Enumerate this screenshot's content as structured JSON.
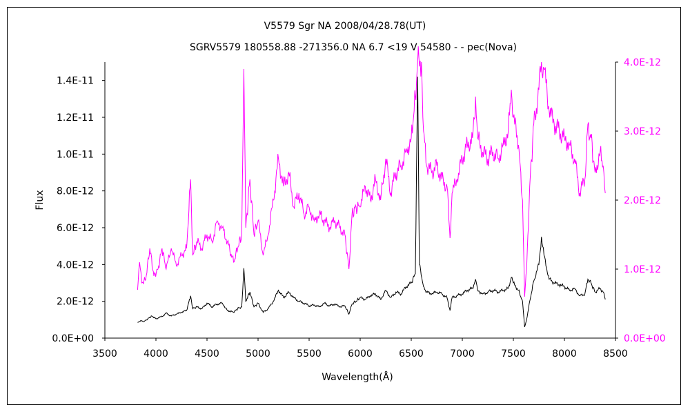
{
  "chart_data": {
    "type": "line",
    "title": "V5579 Sgr    NA    2008/04/28.78(UT)",
    "subtitle": "SGRV5579 180558.88 -271356.0 NA 6.7 <19  V 54580 - - pec(Nova)",
    "xlabel": "Wavelength(Å)",
    "ylabel": "Flux",
    "xlim": [
      3500,
      8500
    ],
    "ylim_left": [
      0,
      1.5e-11
    ],
    "ylim_right": [
      0,
      4e-12
    ],
    "x_ticks": [
      "3500",
      "4000",
      "4500",
      "5000",
      "5500",
      "6000",
      "6500",
      "7000",
      "7500",
      "8000",
      "8500"
    ],
    "y_ticks_left": [
      "0.0E+00",
      "2.0E-12",
      "4.0E-12",
      "6.0E-12",
      "8.0E-12",
      "1.0E-11",
      "1.2E-11",
      "1.4E-11"
    ],
    "y_ticks_right": [
      "0.0E+00",
      "1.0E-12",
      "2.0E-12",
      "3.0E-12",
      "4.0E-12"
    ],
    "grid": false,
    "legend": "none",
    "series": [
      {
        "axis": "left",
        "color": "#000000",
        "points": [
          [
            3820,
            8.5e-13
          ],
          [
            3850,
            9.5e-13
          ],
          [
            3880,
            8.8e-13
          ],
          [
            3920,
            1.05e-12
          ],
          [
            3960,
            1.2e-12
          ],
          [
            4000,
            1.05e-12
          ],
          [
            4050,
            1.15e-12
          ],
          [
            4100,
            1.35e-12
          ],
          [
            4150,
            1.2e-12
          ],
          [
            4200,
            1.3e-12
          ],
          [
            4250,
            1.4e-12
          ],
          [
            4300,
            1.5e-12
          ],
          [
            4340,
            2.3e-12
          ],
          [
            4360,
            1.6e-12
          ],
          [
            4400,
            1.7e-12
          ],
          [
            4450,
            1.6e-12
          ],
          [
            4500,
            1.9e-12
          ],
          [
            4550,
            1.7e-12
          ],
          [
            4600,
            1.85e-12
          ],
          [
            4650,
            1.9e-12
          ],
          [
            4700,
            1.5e-12
          ],
          [
            4760,
            1.4e-12
          ],
          [
            4800,
            1.6e-12
          ],
          [
            4840,
            1.7e-12
          ],
          [
            4861,
            3.8e-12
          ],
          [
            4880,
            2e-12
          ],
          [
            4920,
            2.5e-12
          ],
          [
            4960,
            1.7e-12
          ],
          [
            5000,
            1.9e-12
          ],
          [
            5050,
            1.4e-12
          ],
          [
            5100,
            1.6e-12
          ],
          [
            5150,
            2e-12
          ],
          [
            5200,
            2.6e-12
          ],
          [
            5250,
            2.2e-12
          ],
          [
            5300,
            2.5e-12
          ],
          [
            5350,
            2.2e-12
          ],
          [
            5400,
            2e-12
          ],
          [
            5450,
            1.9e-12
          ],
          [
            5500,
            1.75e-12
          ],
          [
            5550,
            1.8e-12
          ],
          [
            5600,
            1.7e-12
          ],
          [
            5650,
            1.9e-12
          ],
          [
            5700,
            1.75e-12
          ],
          [
            5750,
            1.85e-12
          ],
          [
            5800,
            1.7e-12
          ],
          [
            5850,
            1.75e-12
          ],
          [
            5890,
            1.3e-12
          ],
          [
            5920,
            1.85e-12
          ],
          [
            5960,
            2e-12
          ],
          [
            6000,
            2.2e-12
          ],
          [
            6050,
            2.1e-12
          ],
          [
            6100,
            2.3e-12
          ],
          [
            6150,
            2.4e-12
          ],
          [
            6200,
            2.1e-12
          ],
          [
            6250,
            2.6e-12
          ],
          [
            6300,
            2.2e-12
          ],
          [
            6350,
            2.5e-12
          ],
          [
            6400,
            2.4e-12
          ],
          [
            6450,
            2.8e-12
          ],
          [
            6500,
            3e-12
          ],
          [
            6540,
            3.5e-12
          ],
          [
            6563,
            1.42e-11
          ],
          [
            6580,
            4e-12
          ],
          [
            6620,
            2.8e-12
          ],
          [
            6650,
            2.5e-12
          ],
          [
            6700,
            2.4e-12
          ],
          [
            6750,
            2.5e-12
          ],
          [
            6800,
            2.4e-12
          ],
          [
            6850,
            2.2e-12
          ],
          [
            6880,
            1.5e-12
          ],
          [
            6900,
            2.2e-12
          ],
          [
            6950,
            2.3e-12
          ],
          [
            7000,
            2.4e-12
          ],
          [
            7050,
            2.6e-12
          ],
          [
            7100,
            2.7e-12
          ],
          [
            7130,
            3.2e-12
          ],
          [
            7150,
            2.6e-12
          ],
          [
            7200,
            2.4e-12
          ],
          [
            7250,
            2.5e-12
          ],
          [
            7300,
            2.6e-12
          ],
          [
            7350,
            2.5e-12
          ],
          [
            7400,
            2.6e-12
          ],
          [
            7450,
            2.7e-12
          ],
          [
            7480,
            3.3e-12
          ],
          [
            7500,
            3e-12
          ],
          [
            7550,
            2.6e-12
          ],
          [
            7590,
            2e-12
          ],
          [
            7610,
            6e-13
          ],
          [
            7630,
            1e-12
          ],
          [
            7660,
            2e-12
          ],
          [
            7700,
            3.1e-12
          ],
          [
            7750,
            4e-12
          ],
          [
            7775,
            5.5e-12
          ],
          [
            7800,
            4.5e-12
          ],
          [
            7850,
            3.2e-12
          ],
          [
            7900,
            3e-12
          ],
          [
            7950,
            2.9e-12
          ],
          [
            8000,
            2.8e-12
          ],
          [
            8050,
            2.6e-12
          ],
          [
            8100,
            2.7e-12
          ],
          [
            8150,
            2.3e-12
          ],
          [
            8200,
            2.4e-12
          ],
          [
            8230,
            3.2e-12
          ],
          [
            8260,
            3e-12
          ],
          [
            8300,
            2.5e-12
          ],
          [
            8350,
            2.7e-12
          ],
          [
            8380,
            2.5e-12
          ],
          [
            8400,
            2.1e-12
          ]
        ]
      },
      {
        "axis": "right",
        "color": "#ff00ff",
        "points": [
          [
            3820,
            7e-13
          ],
          [
            3840,
            1.1e-12
          ],
          [
            3860,
            8e-13
          ],
          [
            3900,
            8.5e-13
          ],
          [
            3940,
            1.3e-12
          ],
          [
            3980,
            9e-13
          ],
          [
            4020,
            1e-12
          ],
          [
            4060,
            1.3e-12
          ],
          [
            4100,
            1e-12
          ],
          [
            4150,
            1.3e-12
          ],
          [
            4200,
            1.05e-12
          ],
          [
            4250,
            1.2e-12
          ],
          [
            4300,
            1.3e-12
          ],
          [
            4340,
            2.3e-12
          ],
          [
            4360,
            1.2e-12
          ],
          [
            4400,
            1.4e-12
          ],
          [
            4450,
            1.3e-12
          ],
          [
            4500,
            1.5e-12
          ],
          [
            4550,
            1.4e-12
          ],
          [
            4600,
            1.7e-12
          ],
          [
            4650,
            1.6e-12
          ],
          [
            4700,
            1.4e-12
          ],
          [
            4760,
            1.1e-12
          ],
          [
            4800,
            1.3e-12
          ],
          [
            4840,
            1.5e-12
          ],
          [
            4861,
            3.9e-12
          ],
          [
            4880,
            1.6e-12
          ],
          [
            4920,
            2.3e-12
          ],
          [
            4960,
            1.5e-12
          ],
          [
            5000,
            1.7e-12
          ],
          [
            5050,
            1.2e-12
          ],
          [
            5100,
            1.5e-12
          ],
          [
            5150,
            2e-12
          ],
          [
            5200,
            2.6e-12
          ],
          [
            5250,
            2.2e-12
          ],
          [
            5300,
            2.4e-12
          ],
          [
            5350,
            1.9e-12
          ],
          [
            5400,
            2.1e-12
          ],
          [
            5450,
            1.8e-12
          ],
          [
            5500,
            1.9e-12
          ],
          [
            5550,
            1.7e-12
          ],
          [
            5600,
            1.8e-12
          ],
          [
            5650,
            1.7e-12
          ],
          [
            5700,
            1.6e-12
          ],
          [
            5750,
            1.7e-12
          ],
          [
            5800,
            1.6e-12
          ],
          [
            5850,
            1.5e-12
          ],
          [
            5890,
            1e-12
          ],
          [
            5920,
            1.8e-12
          ],
          [
            5960,
            1.9e-12
          ],
          [
            6000,
            1.9e-12
          ],
          [
            6050,
            2.2e-12
          ],
          [
            6100,
            2e-12
          ],
          [
            6150,
            2.3e-12
          ],
          [
            6200,
            2e-12
          ],
          [
            6250,
            2.6e-12
          ],
          [
            6300,
            2.1e-12
          ],
          [
            6350,
            2.4e-12
          ],
          [
            6400,
            2.5e-12
          ],
          [
            6450,
            2.7e-12
          ],
          [
            6500,
            2.9e-12
          ],
          [
            6540,
            3.5e-12
          ],
          [
            6563,
            4e-12
          ],
          [
            6600,
            4e-12
          ],
          [
            6620,
            3e-12
          ],
          [
            6650,
            2.5e-12
          ],
          [
            6700,
            2.4e-12
          ],
          [
            6750,
            2.5e-12
          ],
          [
            6800,
            2.3e-12
          ],
          [
            6850,
            2.2e-12
          ],
          [
            6880,
            1.45e-12
          ],
          [
            6900,
            2.1e-12
          ],
          [
            6950,
            2.3e-12
          ],
          [
            7000,
            2.6e-12
          ],
          [
            7050,
            2.8e-12
          ],
          [
            7100,
            2.9e-12
          ],
          [
            7130,
            3.5e-12
          ],
          [
            7150,
            2.9e-12
          ],
          [
            7200,
            2.7e-12
          ],
          [
            7250,
            2.6e-12
          ],
          [
            7300,
            2.7e-12
          ],
          [
            7350,
            2.6e-12
          ],
          [
            7400,
            2.8e-12
          ],
          [
            7450,
            3e-12
          ],
          [
            7480,
            3.6e-12
          ],
          [
            7500,
            3.2e-12
          ],
          [
            7550,
            2.8e-12
          ],
          [
            7590,
            2e-12
          ],
          [
            7610,
            6e-13
          ],
          [
            7630,
            1e-12
          ],
          [
            7660,
            2.2e-12
          ],
          [
            7700,
            3.1e-12
          ],
          [
            7750,
            3.6e-12
          ],
          [
            7775,
            4e-12
          ],
          [
            7800,
            3.9e-12
          ],
          [
            7850,
            3.3e-12
          ],
          [
            7900,
            3.1e-12
          ],
          [
            7950,
            3e-12
          ],
          [
            8000,
            2.9e-12
          ],
          [
            8050,
            2.8e-12
          ],
          [
            8100,
            2.6e-12
          ],
          [
            8150,
            2.1e-12
          ],
          [
            8200,
            2.3e-12
          ],
          [
            8230,
            3.1e-12
          ],
          [
            8260,
            2.9e-12
          ],
          [
            8300,
            2.4e-12
          ],
          [
            8350,
            2.7e-12
          ],
          [
            8380,
            2.5e-12
          ],
          [
            8400,
            2.1e-12
          ]
        ]
      }
    ]
  }
}
